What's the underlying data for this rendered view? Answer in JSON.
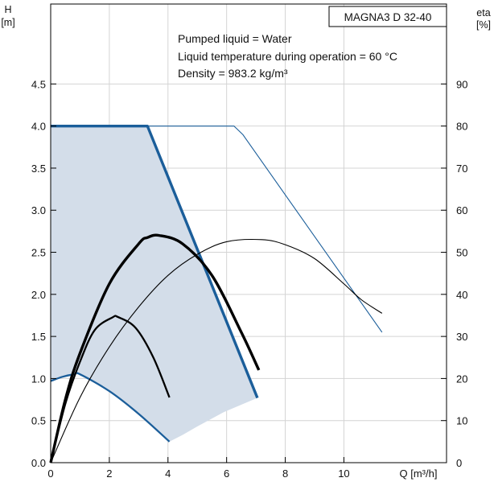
{
  "chart_data": {
    "type": "line",
    "title": "MAGNA3 D 32-40",
    "notes": [
      "Pumped liquid = Water",
      "Liquid temperature during operation = 60 °C",
      "Density = 983.2 kg/m³"
    ],
    "x_axis": {
      "label": "Q [m³/h]",
      "ticks": [
        "0",
        "2",
        "4",
        "6",
        "8",
        "10"
      ],
      "range": [
        0,
        13.5
      ]
    },
    "y_left": {
      "label_top": "H",
      "label_unit": "[m]",
      "ticks": [
        "0.0",
        "0.5",
        "1.0",
        "1.5",
        "2.0",
        "2.5",
        "3.0",
        "3.5",
        "4.0",
        "4.5"
      ],
      "range": [
        0,
        5.45
      ]
    },
    "y_right": {
      "label_top": "eta",
      "label_unit": "[%]",
      "ticks": [
        "0",
        "10",
        "20",
        "30",
        "40",
        "50",
        "60",
        "70",
        "80",
        "90"
      ],
      "range": [
        0,
        109
      ]
    },
    "grid": true,
    "colors": {
      "head": "#1b5e9a",
      "efficiency": "#000000",
      "area_fill": "#d3dde9"
    },
    "operating_area": [
      [
        0,
        4.0
      ],
      [
        3.3,
        4.0
      ],
      [
        7.05,
        0.77
      ],
      [
        5.9,
        0.6
      ],
      [
        5.0,
        0.43
      ],
      [
        4.5,
        0.33
      ],
      [
        4.05,
        0.25
      ],
      [
        3.0,
        0.58
      ],
      [
        2.0,
        0.85
      ],
      [
        1.0,
        1.05
      ],
      [
        0.8,
        1.05
      ],
      [
        0.4,
        1.02
      ],
      [
        0,
        0.97
      ]
    ],
    "series": [
      {
        "axis": "left",
        "style": "thick",
        "points": [
          [
            0,
            4.0
          ],
          [
            3.3,
            4.0
          ],
          [
            7.05,
            0.77
          ]
        ]
      },
      {
        "axis": "left",
        "style": "thin",
        "points": [
          [
            0,
            4.0
          ],
          [
            6.25,
            4.0
          ],
          [
            6.55,
            3.9
          ],
          [
            11.3,
            1.55
          ]
        ]
      },
      {
        "axis": "left",
        "style": "medium",
        "points": [
          [
            0,
            0.97
          ],
          [
            0.4,
            1.02
          ],
          [
            0.8,
            1.05
          ],
          [
            1.0,
            1.05
          ],
          [
            2.0,
            0.85
          ],
          [
            3.0,
            0.58
          ],
          [
            4.05,
            0.25
          ]
        ]
      },
      {
        "axis": "right",
        "style": "thin",
        "points": [
          [
            0,
            0
          ],
          [
            1,
            15.5
          ],
          [
            2,
            27.5
          ],
          [
            3,
            37.0
          ],
          [
            4,
            44.5
          ],
          [
            5,
            49.5
          ],
          [
            6,
            52.5
          ],
          [
            7.2,
            53.0
          ],
          [
            8,
            51.8
          ],
          [
            9,
            48.5
          ],
          [
            10,
            42.5
          ],
          [
            10.6,
            38.7
          ],
          [
            11.3,
            35.5
          ]
        ]
      },
      {
        "axis": "right",
        "style": "thick",
        "points": [
          [
            0,
            0
          ],
          [
            0.5,
            15
          ],
          [
            1,
            26
          ],
          [
            2,
            42.5
          ],
          [
            3,
            52
          ],
          [
            3.3,
            53.5
          ],
          [
            3.7,
            54
          ],
          [
            4.5,
            52
          ],
          [
            5.5,
            44.5
          ],
          [
            6.5,
            31
          ],
          [
            7.1,
            22
          ]
        ]
      },
      {
        "axis": "right",
        "style": "medium",
        "points": [
          [
            0,
            0
          ],
          [
            0.5,
            14
          ],
          [
            1,
            24
          ],
          [
            1.5,
            31.5
          ],
          [
            2.1,
            34.5
          ],
          [
            2.3,
            34.6
          ],
          [
            2.9,
            32
          ],
          [
            3.5,
            25
          ],
          [
            4.05,
            15.5
          ]
        ]
      }
    ]
  }
}
